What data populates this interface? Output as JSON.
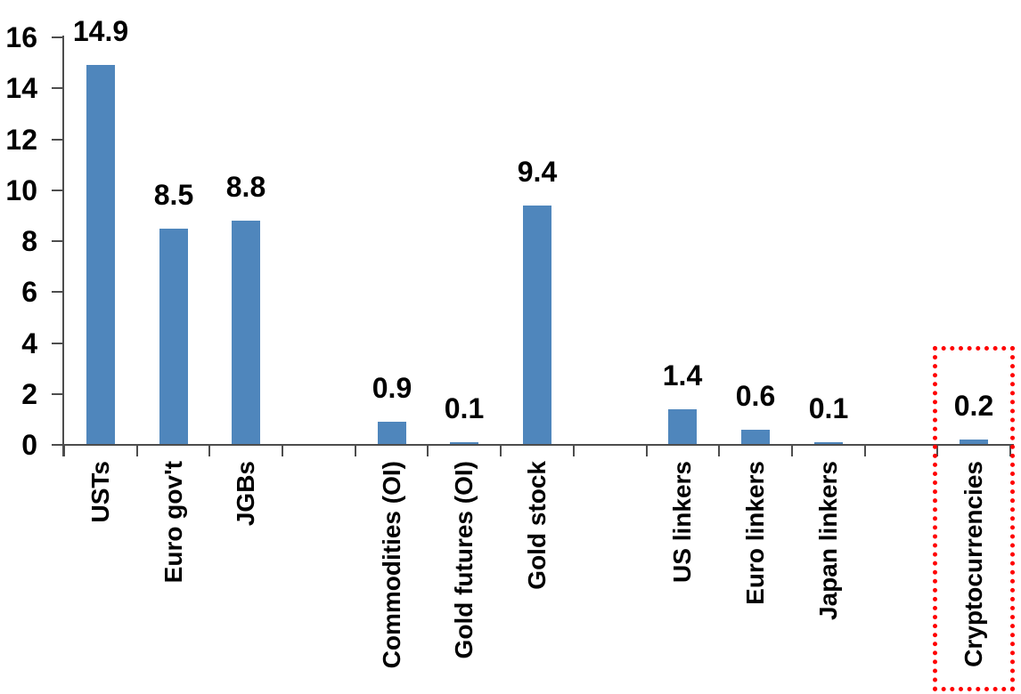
{
  "chart_data": {
    "type": "bar",
    "title": "",
    "xlabel": "",
    "ylabel": "",
    "categories": [
      "USTs",
      "Euro gov't",
      "JGBs",
      "Commodities (OI)",
      "Gold futures (OI)",
      "Gold stock",
      "US linkers",
      "Euro linkers",
      "Japan linkers",
      "Cryptocurrencies"
    ],
    "values": [
      14.9,
      8.5,
      8.8,
      0.9,
      0.1,
      9.4,
      1.4,
      0.6,
      0.1,
      0.2
    ],
    "data_labels": [
      "14.9",
      "8.5",
      "8.8",
      "0.9",
      "0.1",
      "9.4",
      "1.4",
      "0.6",
      "0.1",
      "0.2"
    ],
    "group_sizes": [
      3,
      3,
      3,
      1
    ],
    "y_ticks": [
      16,
      14,
      12,
      10,
      8,
      6,
      4,
      2,
      0
    ],
    "ylim": [
      0,
      16
    ],
    "grid": false,
    "legend": false,
    "bar_color": "#4F86BC",
    "axis_color": "#4D4D4D",
    "text_color": "#000000",
    "highlight": {
      "category": "Cryptocurrencies",
      "border_color": "#FF0000",
      "style": "dotted-rectangle"
    }
  }
}
